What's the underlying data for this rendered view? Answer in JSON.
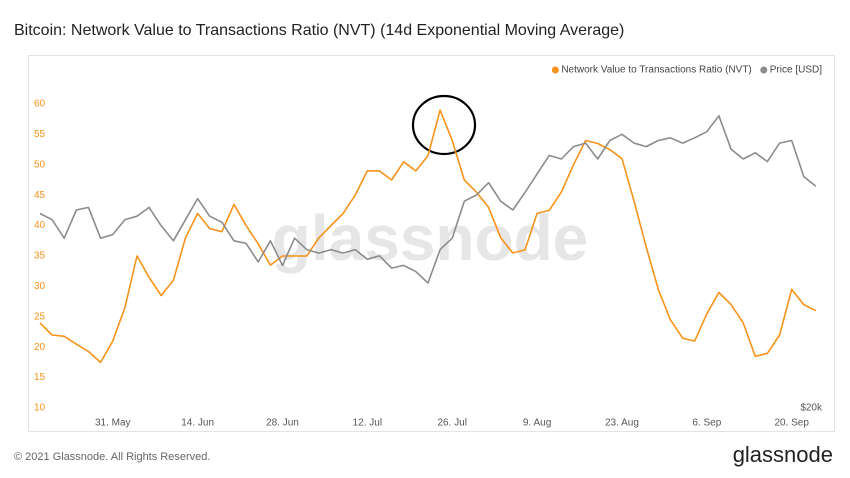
{
  "chart_data": {
    "type": "line",
    "title": "Bitcoin: Network Value to Transactions Ratio (NVT) (14d Exponential Moving Average)",
    "watermark": "glassnode",
    "footer": "© 2021 Glassnode. All Rights Reserved.",
    "brand": "glassnode",
    "x": [
      "2021-05-19",
      "2021-05-21",
      "2021-05-23",
      "2021-05-25",
      "2021-05-27",
      "2021-05-29",
      "2021-05-31",
      "2021-06-02",
      "2021-06-04",
      "2021-06-06",
      "2021-06-08",
      "2021-06-10",
      "2021-06-12",
      "2021-06-14",
      "2021-06-16",
      "2021-06-18",
      "2021-06-20",
      "2021-06-22",
      "2021-06-24",
      "2021-06-26",
      "2021-06-28",
      "2021-06-30",
      "2021-07-02",
      "2021-07-04",
      "2021-07-06",
      "2021-07-08",
      "2021-07-10",
      "2021-07-12",
      "2021-07-14",
      "2021-07-16",
      "2021-07-18",
      "2021-07-20",
      "2021-07-22",
      "2021-07-24",
      "2021-07-26",
      "2021-07-28",
      "2021-07-30",
      "2021-08-01",
      "2021-08-03",
      "2021-08-05",
      "2021-08-07",
      "2021-08-09",
      "2021-08-11",
      "2021-08-13",
      "2021-08-15",
      "2021-08-17",
      "2021-08-19",
      "2021-08-21",
      "2021-08-23",
      "2021-08-25",
      "2021-08-27",
      "2021-08-29",
      "2021-08-31",
      "2021-09-02",
      "2021-09-04",
      "2021-09-06",
      "2021-09-08",
      "2021-09-10",
      "2021-09-12",
      "2021-09-14",
      "2021-09-16",
      "2021-09-18",
      "2021-09-20",
      "2021-09-22",
      "2021-09-24"
    ],
    "series": [
      {
        "name": "Network Value to Transactions Ratio (NVT)",
        "color": "#f7931a",
        "values": [
          24,
          22,
          21.8,
          20.5,
          19.3,
          17.5,
          21,
          26.5,
          35,
          31.5,
          28.5,
          31,
          38,
          42,
          39.5,
          39,
          43.5,
          40,
          37,
          33.5,
          35,
          35,
          35,
          38,
          40,
          42,
          45,
          49,
          49,
          47.5,
          50.5,
          49,
          51.5,
          59,
          54,
          47.5,
          45.5,
          43,
          38,
          35.5,
          36,
          42,
          42.5,
          45.5,
          50,
          54,
          53.5,
          52.5,
          51,
          44,
          36.5,
          29.5,
          24.5,
          21.5,
          21,
          25.5,
          29,
          27,
          24,
          18.5,
          19,
          22,
          29.5,
          27,
          26
        ]
      },
      {
        "name": "Price [USD]",
        "color": "#8c8c8c",
        "axis": "y2",
        "values": [
          42100,
          41400,
          39300,
          42500,
          42800,
          39300,
          39700,
          41400,
          41800,
          42800,
          40700,
          39000,
          41400,
          43800,
          41800,
          41100,
          39000,
          38700,
          36600,
          39000,
          36200,
          39300,
          38000,
          37600,
          38000,
          37600,
          38000,
          36900,
          37300,
          35900,
          36200,
          35500,
          34200,
          38000,
          39300,
          43500,
          44200,
          45600,
          43500,
          42500,
          44500,
          46600,
          48700,
          48300,
          49700,
          50100,
          48300,
          50400,
          51100,
          50100,
          49700,
          50400,
          50700,
          50100,
          50700,
          51400,
          53200,
          49400,
          48300,
          49000,
          48000,
          50100,
          50400,
          46300,
          45200
        ]
      }
    ],
    "xlim": [
      "2021-05-19",
      "2021-09-25"
    ],
    "xticks": [
      {
        "value": "2021-05-31",
        "label": "31. May"
      },
      {
        "value": "2021-06-14",
        "label": "14. Jun"
      },
      {
        "value": "2021-06-28",
        "label": "28. Jun"
      },
      {
        "value": "2021-07-12",
        "label": "12. Jul"
      },
      {
        "value": "2021-07-26",
        "label": "26. Jul"
      },
      {
        "value": "2021-08-09",
        "label": "9. Aug"
      },
      {
        "value": "2021-08-23",
        "label": "23. Aug"
      },
      {
        "value": "2021-09-06",
        "label": "6. Sep"
      },
      {
        "value": "2021-09-20",
        "label": "20. Sep"
      }
    ],
    "ylim": [
      10,
      65
    ],
    "yticks": [
      10,
      15,
      20,
      25,
      30,
      35,
      40,
      45,
      50,
      55,
      60
    ],
    "y2lim": [
      20000,
      58000
    ],
    "y2ticks": [
      {
        "value": 20000,
        "label": "$20k"
      }
    ],
    "legend": "top-right",
    "grid": false
  }
}
